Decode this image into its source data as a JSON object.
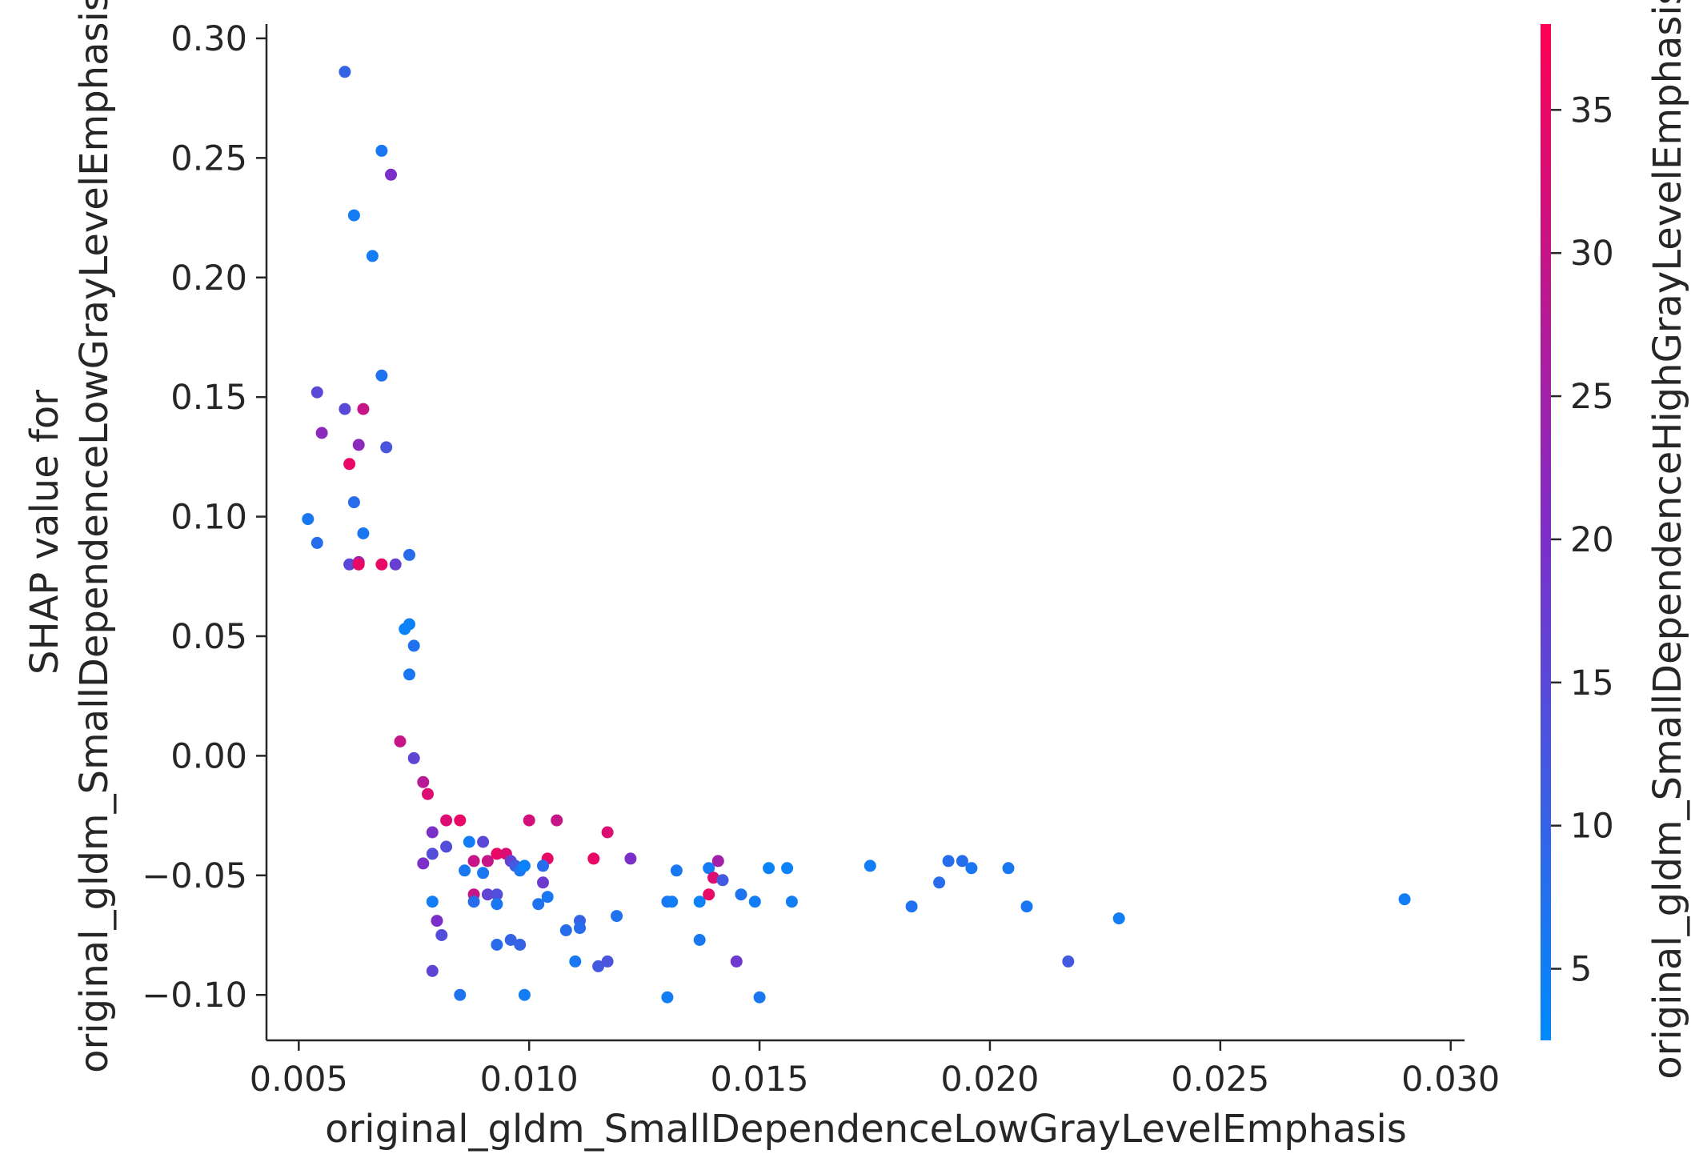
{
  "chart_data": {
    "type": "scatter",
    "title": "",
    "xlabel": "original_gldm_SmallDependenceLowGrayLevelEmphasis",
    "ylabel_line1": "SHAP value for",
    "ylabel_line2": "original_gldm_SmallDependenceLowGrayLevelEmphasis",
    "colorbar_label": "original_gldm_SmallDependenceHighGrayLevelEmphasis",
    "xlim": [
      0.0043,
      0.0303
    ],
    "ylim": [
      -0.119,
      0.306
    ],
    "clim": [
      2.5,
      38
    ],
    "grid": false,
    "color_low": "#008afb",
    "color_mid": "#7e2ec7",
    "color_high": "#ff0052",
    "xticks": [
      {
        "value": 0.005,
        "label": "0.005"
      },
      {
        "value": 0.01,
        "label": "0.010"
      },
      {
        "value": 0.015,
        "label": "0.015"
      },
      {
        "value": 0.02,
        "label": "0.020"
      },
      {
        "value": 0.025,
        "label": "0.025"
      },
      {
        "value": 0.03,
        "label": "0.030"
      }
    ],
    "yticks": [
      {
        "value": 0.3,
        "label": "0.30"
      },
      {
        "value": 0.25,
        "label": "0.25"
      },
      {
        "value": 0.2,
        "label": "0.20"
      },
      {
        "value": 0.15,
        "label": "0.15"
      },
      {
        "value": 0.1,
        "label": "0.10"
      },
      {
        "value": 0.05,
        "label": "0.05"
      },
      {
        "value": 0.0,
        "label": "0.00"
      },
      {
        "value": -0.05,
        "label": "−0.05"
      },
      {
        "value": -0.1,
        "label": "−0.10"
      }
    ],
    "cticks": [
      {
        "value": 5,
        "label": "5"
      },
      {
        "value": 10,
        "label": "10"
      },
      {
        "value": 15,
        "label": "15"
      },
      {
        "value": 20,
        "label": "20"
      },
      {
        "value": 25,
        "label": "25"
      },
      {
        "value": 30,
        "label": "30"
      },
      {
        "value": 35,
        "label": "35"
      }
    ],
    "points": [
      [
        0.006,
        0.286,
        10
      ],
      [
        0.0068,
        0.253,
        6
      ],
      [
        0.007,
        0.243,
        20
      ],
      [
        0.0062,
        0.226,
        5
      ],
      [
        0.0066,
        0.209,
        5
      ],
      [
        0.0068,
        0.159,
        7
      ],
      [
        0.0054,
        0.152,
        15
      ],
      [
        0.006,
        0.145,
        15
      ],
      [
        0.0064,
        0.145,
        30
      ],
      [
        0.0055,
        0.135,
        22
      ],
      [
        0.0063,
        0.13,
        22
      ],
      [
        0.0069,
        0.129,
        13
      ],
      [
        0.0061,
        0.122,
        35
      ],
      [
        0.0062,
        0.106,
        8
      ],
      [
        0.0052,
        0.099,
        6
      ],
      [
        0.0064,
        0.093,
        6
      ],
      [
        0.0054,
        0.089,
        8
      ],
      [
        0.0074,
        0.084,
        8
      ],
      [
        0.0061,
        0.08,
        15
      ],
      [
        0.0063,
        0.081,
        25
      ],
      [
        0.0063,
        0.08,
        35
      ],
      [
        0.0068,
        0.08,
        35
      ],
      [
        0.0071,
        0.08,
        17
      ],
      [
        0.0074,
        0.055,
        4
      ],
      [
        0.0073,
        0.053,
        4
      ],
      [
        0.0075,
        0.046,
        7
      ],
      [
        0.0074,
        0.034,
        6
      ],
      [
        0.0072,
        0.006,
        30
      ],
      [
        0.0075,
        -0.001,
        16
      ],
      [
        0.0077,
        -0.011,
        28
      ],
      [
        0.0078,
        -0.016,
        33
      ],
      [
        0.0082,
        -0.027,
        33
      ],
      [
        0.0085,
        -0.027,
        35
      ],
      [
        0.0079,
        -0.032,
        20
      ],
      [
        0.0079,
        -0.041,
        14
      ],
      [
        0.0077,
        -0.045,
        20
      ],
      [
        0.0082,
        -0.038,
        14
      ],
      [
        0.0087,
        -0.036,
        5
      ],
      [
        0.009,
        -0.036,
        15
      ],
      [
        0.0093,
        -0.041,
        35
      ],
      [
        0.0095,
        -0.041,
        33
      ],
      [
        0.0091,
        -0.044,
        30
      ],
      [
        0.0088,
        -0.044,
        30
      ],
      [
        0.0096,
        -0.044,
        16
      ],
      [
        0.0097,
        -0.046,
        12
      ],
      [
        0.0098,
        -0.048,
        6
      ],
      [
        0.0099,
        -0.046,
        4
      ],
      [
        0.0086,
        -0.048,
        6
      ],
      [
        0.009,
        -0.049,
        6
      ],
      [
        0.0088,
        -0.058,
        30
      ],
      [
        0.0091,
        -0.058,
        16
      ],
      [
        0.0093,
        -0.058,
        14
      ],
      [
        0.0088,
        -0.061,
        8
      ],
      [
        0.0093,
        -0.062,
        6
      ],
      [
        0.0079,
        -0.061,
        5
      ],
      [
        0.008,
        -0.069,
        20
      ],
      [
        0.0081,
        -0.075,
        14
      ],
      [
        0.0079,
        -0.09,
        16
      ],
      [
        0.0085,
        -0.1,
        7
      ],
      [
        0.0093,
        -0.079,
        8
      ],
      [
        0.0096,
        -0.077,
        10
      ],
      [
        0.0098,
        -0.079,
        10
      ],
      [
        0.0099,
        -0.1,
        5
      ],
      [
        0.01,
        -0.027,
        32
      ],
      [
        0.0106,
        -0.027,
        30
      ],
      [
        0.0104,
        -0.043,
        35
      ],
      [
        0.0103,
        -0.046,
        8
      ],
      [
        0.0103,
        -0.053,
        18
      ],
      [
        0.0102,
        -0.062,
        7
      ],
      [
        0.0104,
        -0.059,
        6
      ],
      [
        0.0108,
        -0.073,
        8
      ],
      [
        0.0111,
        -0.069,
        10
      ],
      [
        0.0111,
        -0.072,
        8
      ],
      [
        0.011,
        -0.086,
        6
      ],
      [
        0.0115,
        -0.088,
        12
      ],
      [
        0.0117,
        -0.086,
        13
      ],
      [
        0.0114,
        -0.043,
        35
      ],
      [
        0.0117,
        -0.032,
        33
      ],
      [
        0.0122,
        -0.043,
        20
      ],
      [
        0.0119,
        -0.067,
        7
      ],
      [
        0.013,
        -0.061,
        6
      ],
      [
        0.0131,
        -0.061,
        5
      ],
      [
        0.0132,
        -0.048,
        6
      ],
      [
        0.013,
        -0.101,
        5
      ],
      [
        0.0137,
        -0.061,
        4
      ],
      [
        0.0137,
        -0.077,
        6
      ],
      [
        0.0139,
        -0.058,
        35
      ],
      [
        0.0139,
        -0.047,
        5
      ],
      [
        0.014,
        -0.051,
        33
      ],
      [
        0.0141,
        -0.044,
        25
      ],
      [
        0.0142,
        -0.052,
        12
      ],
      [
        0.0145,
        -0.086,
        18
      ],
      [
        0.0146,
        -0.058,
        7
      ],
      [
        0.0149,
        -0.061,
        5
      ],
      [
        0.015,
        -0.101,
        6
      ],
      [
        0.0152,
        -0.047,
        4
      ],
      [
        0.0156,
        -0.047,
        4
      ],
      [
        0.0157,
        -0.061,
        5
      ],
      [
        0.0174,
        -0.046,
        5
      ],
      [
        0.0183,
        -0.063,
        7
      ],
      [
        0.0189,
        -0.053,
        8
      ],
      [
        0.0191,
        -0.044,
        8
      ],
      [
        0.0194,
        -0.044,
        8
      ],
      [
        0.0196,
        -0.047,
        6
      ],
      [
        0.0204,
        -0.047,
        6
      ],
      [
        0.0208,
        -0.063,
        6
      ],
      [
        0.0217,
        -0.086,
        12
      ],
      [
        0.0228,
        -0.068,
        5
      ],
      [
        0.029,
        -0.06,
        5
      ]
    ]
  }
}
